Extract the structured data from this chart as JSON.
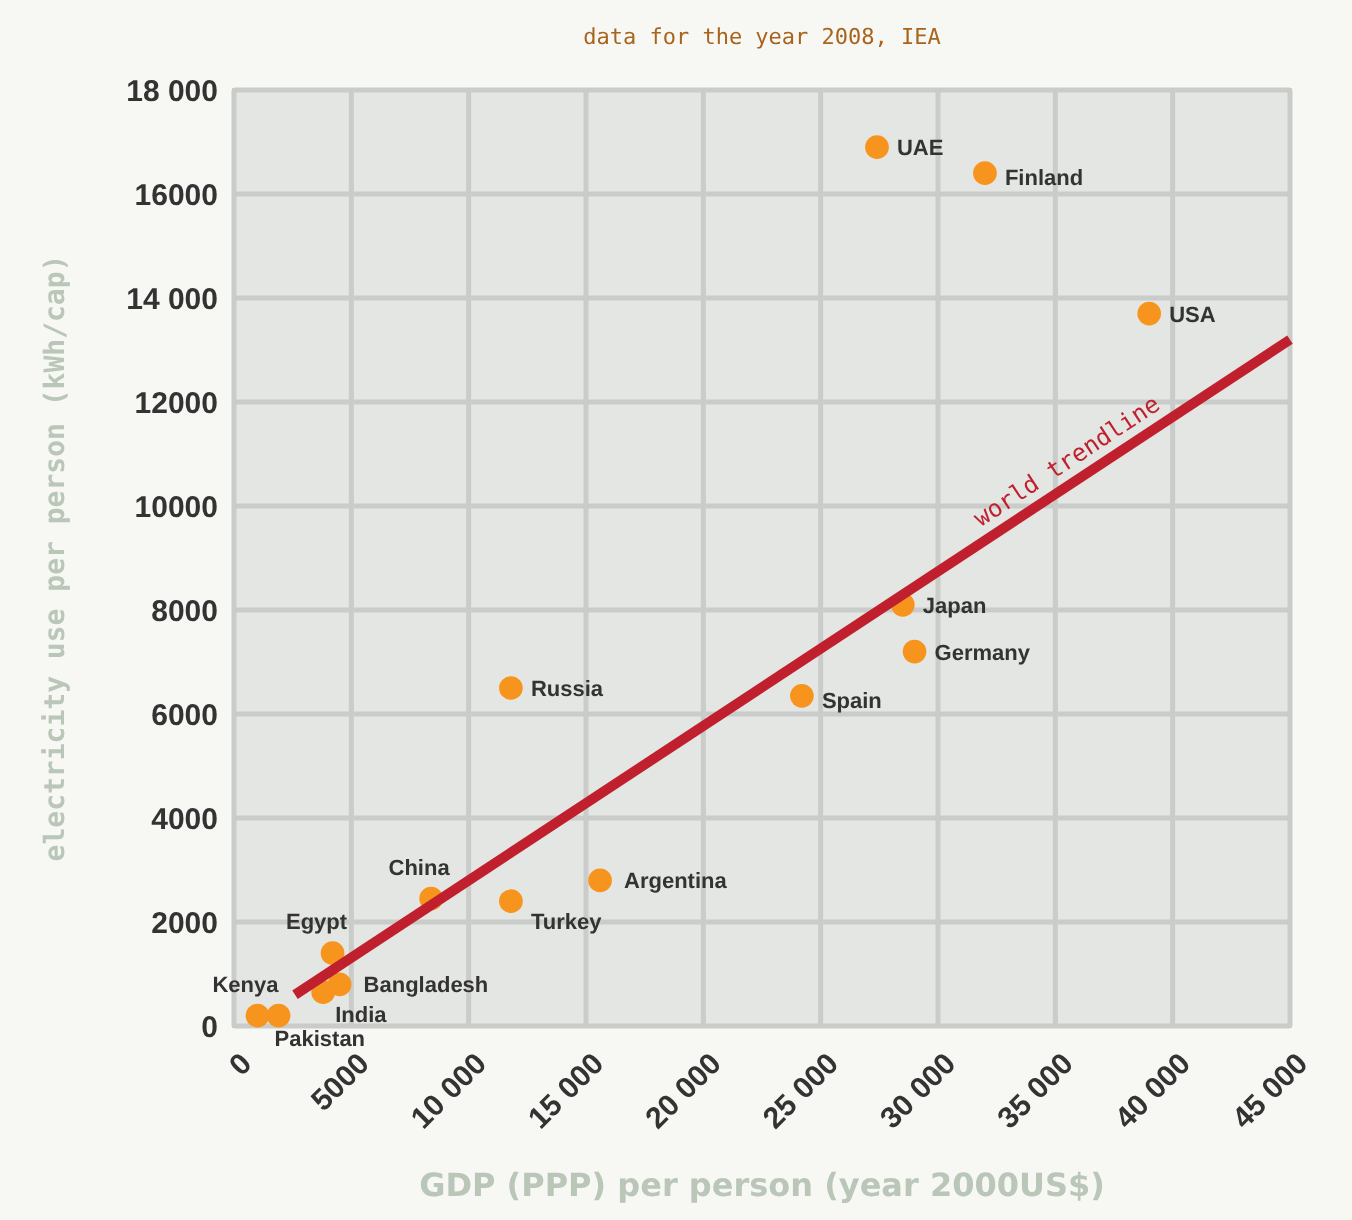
{
  "chart_data": {
    "type": "scatter",
    "title": "data for the year 2008, IEA",
    "xlabel": "GDP (PPP) per person (year 2000US$)",
    "ylabel": "electricity use per person (kWh/cap)",
    "xlim": [
      0,
      45000
    ],
    "ylim": [
      0,
      18000
    ],
    "xticks": [
      0,
      5000,
      {
        "value": 10000,
        "label": "10 000"
      },
      {
        "value": 15000,
        "label": "15 000"
      },
      {
        "value": 20000,
        "label": "20 000"
      },
      {
        "value": 25000,
        "label": "25 000"
      },
      {
        "value": 30000,
        "label": "30 000"
      },
      {
        "value": 35000,
        "label": "35 000"
      },
      {
        "value": 40000,
        "label": "40 000"
      },
      {
        "value": 45000,
        "label": "45 000"
      }
    ],
    "yticks": [
      0,
      2000,
      4000,
      6000,
      8000,
      10000,
      12000,
      {
        "value": 14000,
        "label": "14 000"
      },
      16000,
      {
        "value": 18000,
        "label": "18 000"
      }
    ],
    "grid": true,
    "series": [
      {
        "marker": "circle",
        "color": "#f7941d",
        "x": [
          27400,
          32000,
          39000,
          28500,
          29000,
          24200,
          11800,
          15600,
          11800,
          8400,
          4200,
          4500,
          3800,
          1000,
          1900
        ],
        "values": [
          16900,
          16400,
          13700,
          8100,
          7200,
          6350,
          6500,
          2800,
          2400,
          2450,
          1400,
          800,
          650,
          200,
          200
        ]
      },
      {
        "type": "line",
        "name": "world trendline",
        "color": "#c0202e",
        "x": [
          2600,
          45000
        ],
        "values": [
          600,
          13200
        ]
      }
    ],
    "annotations": [
      {
        "text": "UAE",
        "x": 27400,
        "y": 16900
      },
      {
        "text": "Finland",
        "x": 32000,
        "y": 16400
      },
      {
        "text": "USA",
        "x": 39000,
        "y": 13700
      },
      {
        "text": "Japan",
        "x": 28500,
        "y": 8100
      },
      {
        "text": "Germany",
        "x": 29000,
        "y": 7200
      },
      {
        "text": "Spain",
        "x": 24200,
        "y": 6350
      },
      {
        "text": "Russia",
        "x": 11800,
        "y": 6500
      },
      {
        "text": "Argentina",
        "x": 15600,
        "y": 2800
      },
      {
        "text": "Turkey",
        "x": 11800,
        "y": 2400
      },
      {
        "text": "China",
        "x": 8400,
        "y": 2450
      },
      {
        "text": "Egypt",
        "x": 4200,
        "y": 1400
      },
      {
        "text": "Bangladesh",
        "x": 4500,
        "y": 800
      },
      {
        "text": "India",
        "x": 3800,
        "y": 650
      },
      {
        "text": "Kenya",
        "x": 1000,
        "y": 200
      },
      {
        "text": "Pakistan",
        "x": 1900,
        "y": 200
      }
    ]
  }
}
